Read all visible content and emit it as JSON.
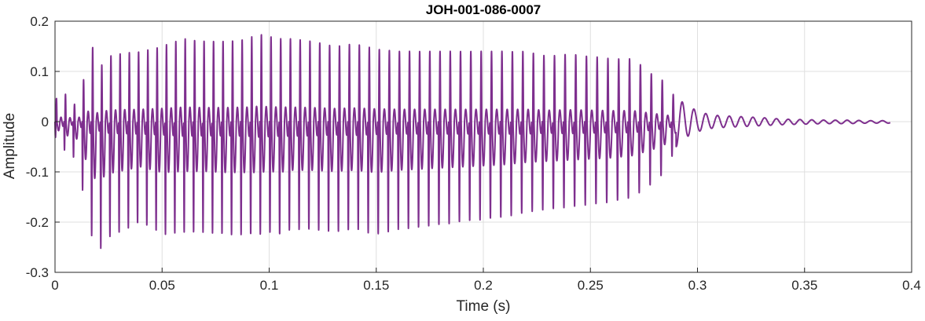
{
  "chart_data": {
    "type": "line",
    "title": "JOH-001-086-0007",
    "xlabel": "Time (s)",
    "ylabel": "Amplitude",
    "xlim": [
      0,
      0.4
    ],
    "ylim": [
      -0.3,
      0.2
    ],
    "x_ticks": [
      0,
      0.05,
      0.1,
      0.15,
      0.2,
      0.25,
      0.3,
      0.35,
      0.4
    ],
    "x_tick_labels": [
      "0",
      "0.05",
      "0.1",
      "0.15",
      "0.2",
      "0.25",
      "0.3",
      "0.35",
      "0.4"
    ],
    "y_ticks": [
      -0.3,
      -0.2,
      -0.1,
      0,
      0.1,
      0.2
    ],
    "y_tick_labels": [
      "-0.3",
      "-0.2",
      "-0.1",
      "0",
      "0.1",
      "0.2"
    ],
    "grid": true,
    "colors": {
      "series": "#7E2F8E",
      "grid": "#dfdfdf",
      "axis": "#262626"
    },
    "series": [
      {
        "x": [
          0,
          0.005,
          0.01,
          0.0175,
          0.0195,
          0.025,
          0.03,
          0.04,
          0.05,
          0.06,
          0.07,
          0.08,
          0.09,
          0.095,
          0.1,
          0.105,
          0.11,
          0.12,
          0.13,
          0.14,
          0.15,
          0.16,
          0.17,
          0.18,
          0.19,
          0.2,
          0.21,
          0.22,
          0.23,
          0.24,
          0.25,
          0.26,
          0.27,
          0.28,
          0.285,
          0.29,
          0.295,
          0.3,
          0.305,
          0.31,
          0.32,
          0.33,
          0.34,
          0.35,
          0.36,
          0.37,
          0.38,
          0.39
        ],
        "y_max": [
          0.045,
          0.055,
          0.03,
          0.15,
          0.1,
          0.13,
          0.135,
          0.14,
          0.15,
          0.165,
          0.16,
          0.16,
          0.165,
          0.175,
          0.17,
          0.165,
          0.165,
          0.16,
          0.15,
          0.155,
          0.145,
          0.14,
          0.14,
          0.14,
          0.14,
          0.14,
          0.14,
          0.14,
          0.13,
          0.135,
          0.13,
          0.125,
          0.125,
          0.09,
          0.08,
          0.045,
          0.035,
          0.02,
          0.015,
          0.012,
          0.01,
          0.008,
          0.005,
          0.004,
          0.003,
          0.003,
          0.002,
          0.002
        ],
        "y_min": [
          -0.03,
          -0.06,
          -0.075,
          -0.235,
          -0.265,
          -0.23,
          -0.22,
          -0.2,
          -0.225,
          -0.22,
          -0.22,
          -0.225,
          -0.225,
          -0.225,
          -0.22,
          -0.225,
          -0.215,
          -0.215,
          -0.22,
          -0.215,
          -0.225,
          -0.215,
          -0.21,
          -0.205,
          -0.2,
          -0.195,
          -0.19,
          -0.18,
          -0.175,
          -0.17,
          -0.165,
          -0.16,
          -0.15,
          -0.12,
          -0.1,
          -0.05,
          -0.03,
          -0.02,
          -0.014,
          -0.012,
          -0.01,
          -0.008,
          -0.006,
          -0.005,
          -0.004,
          -0.004,
          -0.003,
          -0.003
        ]
      }
    ]
  }
}
